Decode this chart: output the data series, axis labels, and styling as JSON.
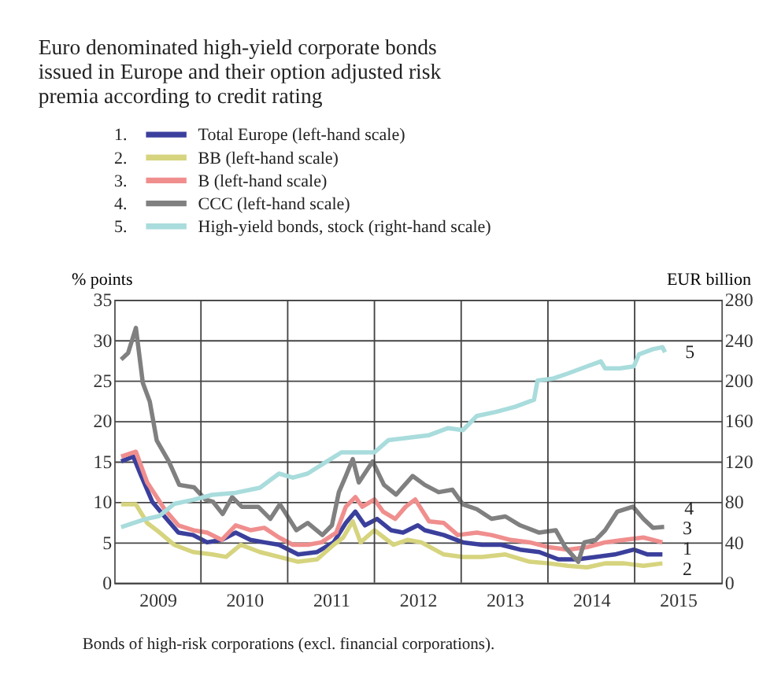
{
  "chart_data": {
    "type": "line",
    "title": "Euro denominated high-yield corporate bonds issued in Europe and their option adjusted risk premia according to credit rating",
    "ylabel": "% points",
    "y2label": "EUR billion",
    "xlim": [
      2009,
      2016
    ],
    "xticks": [
      {
        "value": 2009.5,
        "label": "2009"
      },
      {
        "value": 2010.5,
        "label": "2010"
      },
      {
        "value": 2011.5,
        "label": "2011"
      },
      {
        "value": 2012.5,
        "label": "2012"
      },
      {
        "value": 2013.5,
        "label": "2013"
      },
      {
        "value": 2014.5,
        "label": "2014"
      },
      {
        "value": 2015.5,
        "label": "2015"
      },
      {
        "value": 2010,
        "label": null
      },
      {
        "value": 2011,
        "label": null
      },
      {
        "value": 2012,
        "label": null
      },
      {
        "value": 2013,
        "label": null
      },
      {
        "value": 2014,
        "label": null
      },
      {
        "value": 2015,
        "label": null
      }
    ],
    "ylim": [
      0,
      35
    ],
    "yticks": [
      0,
      5,
      10,
      15,
      20,
      25,
      30,
      35
    ],
    "y2lim": [
      0,
      280
    ],
    "y2ticks": [
      0,
      40,
      80,
      120,
      160,
      200,
      240,
      280
    ],
    "grid": true,
    "legend": "top left",
    "line_style": "solid",
    "series": [
      {
        "name": "Total Europe (left-hand scale)",
        "color": "#3b3f9c",
        "x": [
          2009.08,
          2009.22,
          2009.3,
          2009.44,
          2009.58,
          2009.74,
          2009.91,
          2010.07,
          2010.24,
          2010.4,
          2010.57,
          2010.73,
          2010.9,
          2011.12,
          2011.34,
          2011.53,
          2011.67,
          2011.78,
          2011.89,
          2012.03,
          2012.19,
          2012.33,
          2012.5,
          2012.58,
          2012.8,
          2013.02,
          2013.24,
          2013.46,
          2013.68,
          2013.9,
          2014.12,
          2014.34,
          2014.55,
          2014.77,
          2014.99,
          2015.15,
          2015.32
        ],
        "values": [
          15,
          15.6,
          13.5,
          10,
          8.2,
          6.2,
          5.9,
          5,
          5.3,
          6.2,
          5.3,
          5,
          4.7,
          3.5,
          3.8,
          5,
          7.4,
          8.8,
          7.1,
          7.9,
          6.5,
          6.2,
          7.1,
          6.5,
          5.9,
          5,
          4.7,
          4.7,
          4.1,
          3.8,
          2.9,
          2.9,
          3.2,
          3.5,
          4.1,
          3.5,
          3.5
        ]
      },
      {
        "name": "BB (left-hand scale)",
        "color": "#d6d47e",
        "x": [
          2009.08,
          2009.25,
          2009.38,
          2009.49,
          2009.69,
          2009.91,
          2010.13,
          2010.29,
          2010.46,
          2010.68,
          2010.9,
          2011.12,
          2011.34,
          2011.53,
          2011.64,
          2011.75,
          2011.84,
          2012,
          2012.22,
          2012.38,
          2012.54,
          2012.8,
          2013.02,
          2013.24,
          2013.51,
          2013.79,
          2014.01,
          2014.23,
          2014.45,
          2014.66,
          2014.88,
          2015.1,
          2015.32
        ],
        "values": [
          9.7,
          9.7,
          7.4,
          6.5,
          4.7,
          3.8,
          3.5,
          3.2,
          4.7,
          3.8,
          3.2,
          2.6,
          2.9,
          4.7,
          5.6,
          7.6,
          5,
          6.5,
          4.7,
          5.3,
          5,
          3.5,
          3.2,
          3.2,
          3.5,
          2.6,
          2.4,
          2.1,
          1.9,
          2.4,
          2.4,
          2.1,
          2.4
        ]
      },
      {
        "name": "B (left-hand scale)",
        "color": "#f08e8e",
        "x": [
          2009.08,
          2009.25,
          2009.38,
          2009.49,
          2009.58,
          2009.74,
          2009.91,
          2010.07,
          2010.24,
          2010.4,
          2010.57,
          2010.73,
          2010.9,
          2011.06,
          2011.23,
          2011.39,
          2011.56,
          2011.67,
          2011.78,
          2011.86,
          2012,
          2012.1,
          2012.24,
          2012.36,
          2012.47,
          2012.63,
          2012.8,
          2012.96,
          2013.18,
          2013.35,
          2013.57,
          2013.79,
          2014.01,
          2014.23,
          2014.45,
          2014.66,
          2014.88,
          2015.1,
          2015.32
        ],
        "values": [
          15.6,
          16.2,
          12.4,
          10.6,
          9.1,
          7.1,
          6.5,
          6.2,
          5.3,
          7.1,
          6.5,
          6.8,
          5.6,
          4.7,
          4.7,
          5,
          6.2,
          9.4,
          10.6,
          9.4,
          10.3,
          8.8,
          7.9,
          9.4,
          10.3,
          7.6,
          7.4,
          5.9,
          6.2,
          5.9,
          5.3,
          5,
          4.4,
          4.1,
          4.4,
          5,
          5.3,
          5.6,
          5
        ]
      },
      {
        "name": "CCC (left-hand scale)",
        "color": "#808080",
        "x": [
          2009.08,
          2009.16,
          2009.25,
          2009.33,
          2009.41,
          2009.49,
          2009.63,
          2009.75,
          2009.92,
          2010.05,
          2010.14,
          2010.25,
          2010.36,
          2010.47,
          2010.66,
          2010.8,
          2010.91,
          2011.1,
          2011.23,
          2011.4,
          2011.51,
          2011.59,
          2011.67,
          2011.75,
          2011.82,
          2011.98,
          2012.11,
          2012.25,
          2012.44,
          2012.58,
          2012.74,
          2012.9,
          2013.02,
          2013.18,
          2013.35,
          2013.51,
          2013.68,
          2013.9,
          2014.09,
          2014.2,
          2014.35,
          2014.42,
          2014.55,
          2014.66,
          2014.8,
          2014.98,
          2015.1,
          2015.21,
          2015.34
        ],
        "values": [
          27.6,
          28.4,
          31.5,
          24.7,
          22.4,
          17.6,
          15,
          12.1,
          11.8,
          10.3,
          10,
          8.5,
          10.6,
          9.4,
          9.4,
          7.9,
          9.7,
          6.5,
          7.4,
          5.9,
          7.1,
          11.2,
          13.2,
          15.3,
          12.4,
          15,
          12.1,
          10.9,
          13.2,
          12.1,
          11.2,
          11.5,
          9.7,
          9.1,
          7.9,
          8.2,
          7.1,
          6.2,
          6.5,
          4.4,
          2.6,
          5,
          5.3,
          6.5,
          8.8,
          9.4,
          7.9,
          6.8,
          6.9
        ]
      },
      {
        "name": "High-yield bonds, stock (right-hand scale)",
        "color": "#a9dcdc",
        "axis": "y2",
        "x": [
          2009.08,
          2009.22,
          2009.36,
          2009.52,
          2009.69,
          2009.91,
          2010.13,
          2010.4,
          2010.68,
          2010.9,
          2011.06,
          2011.23,
          2011.45,
          2011.62,
          2011.84,
          2012,
          2012.16,
          2012.44,
          2012.63,
          2012.85,
          2013.02,
          2013.18,
          2013.4,
          2013.62,
          2013.84,
          2013.88,
          2014.06,
          2014.23,
          2014.45,
          2014.61,
          2014.66,
          2014.83,
          2014.99,
          2015.05,
          2015.21,
          2015.32,
          2015.35
        ],
        "values": [
          55,
          59,
          63,
          66,
          78,
          82,
          87,
          89,
          94,
          108,
          104,
          108,
          120,
          129,
          129,
          129,
          141,
          144,
          146,
          153,
          151,
          165,
          169,
          174,
          181,
          200,
          202,
          207,
          214,
          219,
          212,
          212,
          214,
          226,
          231,
          233,
          228
        ]
      }
    ],
    "annotations": [
      "1.",
      "2.",
      "3.",
      "4.",
      "5.",
      "1",
      "2",
      "3",
      "4",
      "5",
      "Bonds of high-risk corporations (excl. financial corporations)."
    ]
  }
}
